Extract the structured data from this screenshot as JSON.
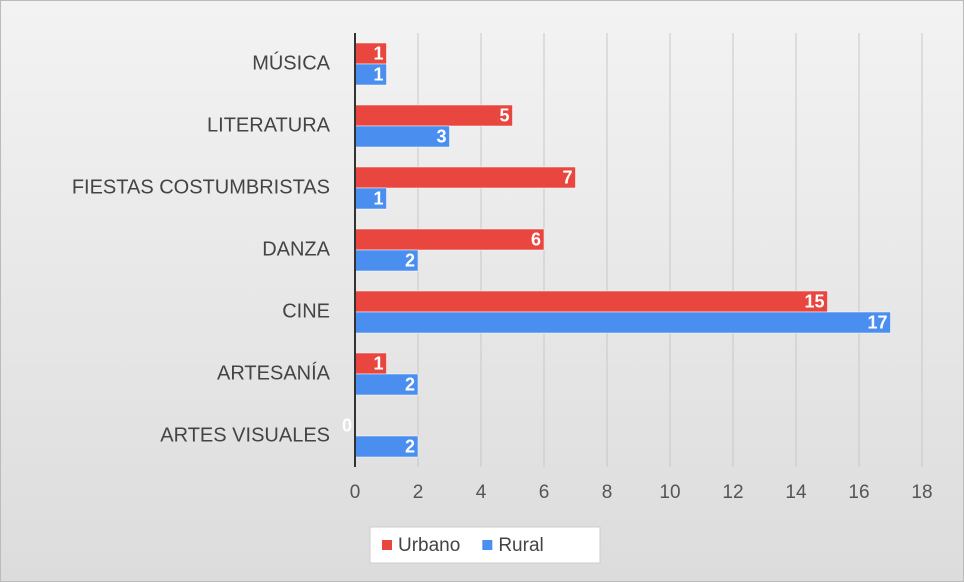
{
  "chart_data": {
    "type": "bar",
    "orientation": "horizontal",
    "categories": [
      "MÚSICA",
      "LITERATURA",
      "FIESTAS COSTUMBRISTAS",
      "DANZA",
      "CINE",
      "ARTESANÍA",
      "ARTES VISUALES"
    ],
    "series": [
      {
        "name": "Urbano",
        "color": "#e8463f",
        "values": [
          1,
          5,
          7,
          6,
          15,
          1,
          0
        ]
      },
      {
        "name": "Rural",
        "color": "#4a8ef0",
        "values": [
          1,
          3,
          1,
          2,
          17,
          2,
          2
        ]
      }
    ],
    "xlim": [
      0,
      18
    ],
    "xticks": [
      0,
      2,
      4,
      6,
      8,
      10,
      12,
      14,
      16,
      18
    ],
    "grid": true,
    "legend": "bottom"
  }
}
